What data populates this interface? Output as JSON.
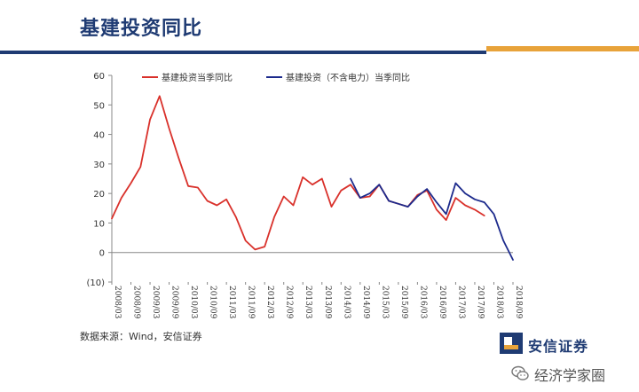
{
  "header": {
    "title": "基建投资同比",
    "colors": {
      "title": "#1f3b73",
      "bar_blue": "#1f3b73",
      "bar_orange": "#e8a33a"
    }
  },
  "footer": {
    "source": "数据来源：Wind，安信证券",
    "logo_text": "安信证券",
    "watermark_text": "经济学家圈",
    "watermark_icon": "wechat-icon"
  },
  "chart_data": {
    "type": "line",
    "x": [
      "2008/03",
      "2008/06",
      "2008/09",
      "2008/12",
      "2009/03",
      "2009/06",
      "2009/09",
      "2009/12",
      "2010/03",
      "2010/06",
      "2010/09",
      "2010/12",
      "2011/03",
      "2011/06",
      "2011/09",
      "2011/12",
      "2012/03",
      "2012/06",
      "2012/09",
      "2012/12",
      "2013/03",
      "2013/06",
      "2013/09",
      "2013/12",
      "2014/03",
      "2014/06",
      "2014/09",
      "2014/12",
      "2015/03",
      "2015/06",
      "2015/09",
      "2015/12",
      "2016/03",
      "2016/06",
      "2016/09",
      "2016/12",
      "2017/03",
      "2017/06",
      "2017/09",
      "2017/12",
      "2018/03",
      "2018/06",
      "2018/09"
    ],
    "x_tick_labels": [
      "2008/03",
      "2008/09",
      "2009/03",
      "2009/09",
      "2010/03",
      "2010/09",
      "2011/03",
      "2011/09",
      "2012/03",
      "2012/09",
      "2013/03",
      "2013/09",
      "2014/03",
      "2014/09",
      "2015/03",
      "2015/09",
      "2016/03",
      "2016/09",
      "2017/03",
      "2017/09",
      "2018/03",
      "2018/09"
    ],
    "series": [
      {
        "name": "基建投资当季同比",
        "color": "#d9312b",
        "values": [
          11.5,
          18.5,
          23.5,
          29,
          45,
          53,
          42,
          32,
          22.5,
          22,
          17.5,
          16,
          18,
          12,
          4,
          1,
          2,
          12,
          19,
          16,
          25.5,
          23,
          25,
          15.5,
          21,
          23,
          18.5,
          19,
          23,
          17.5,
          16.5,
          15.5,
          19.5,
          21,
          14.5,
          11,
          18.5,
          16,
          14.5,
          12.5,
          null,
          null,
          null
        ]
      },
      {
        "name": "基建投资（不含电力）当季同比",
        "color": "#1c2a8c",
        "values": [
          null,
          null,
          null,
          null,
          null,
          null,
          null,
          null,
          null,
          null,
          null,
          null,
          null,
          null,
          null,
          null,
          null,
          null,
          null,
          null,
          null,
          null,
          null,
          null,
          null,
          25,
          18.5,
          20,
          23,
          17.5,
          16.5,
          15.5,
          19,
          21.5,
          17,
          13,
          23.5,
          20,
          18,
          17,
          13,
          4,
          -2.5
        ]
      }
    ],
    "y_ticks": [
      60,
      50,
      40,
      30,
      20,
      10,
      0,
      -10
    ],
    "y_tick_labels": [
      "60",
      "50",
      "40",
      "30",
      "20",
      "10",
      "0",
      "(10)"
    ],
    "ylim": [
      -10,
      60
    ],
    "legend": "top",
    "grid": false
  }
}
